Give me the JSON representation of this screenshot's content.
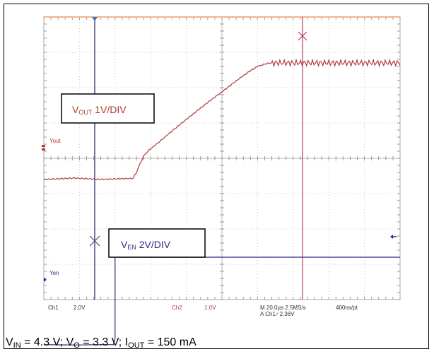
{
  "chart_data": {
    "type": "line",
    "title": "",
    "xlabel": "",
    "ylabel": "",
    "grid": true,
    "x_unit": "µs",
    "x_range": [
      -50,
      150
    ],
    "y_divisions": 8,
    "series": [
      {
        "name": "Yout",
        "label": "VOUT 1V/DIV",
        "color": "#b03a3a",
        "x": [
          -50,
          -33,
          -18,
          -8,
          0,
          2,
          4,
          6,
          8,
          10,
          14,
          20,
          26,
          34,
          42,
          50,
          58,
          62,
          66,
          70,
          75,
          80,
          90,
          100,
          110,
          120,
          130,
          140,
          150
        ],
        "y": [
          0,
          0.04,
          0,
          0.02,
          0.03,
          0.2,
          0.45,
          0.66,
          0.78,
          0.87,
          1.03,
          1.29,
          1.54,
          1.86,
          2.18,
          2.48,
          2.79,
          2.94,
          3.08,
          3.2,
          3.28,
          3.3,
          3.3,
          3.3,
          3.3,
          3.3,
          3.3,
          3.3,
          3.3
        ]
      },
      {
        "name": "Yen",
        "label": "VEN 2V/DIV",
        "color": "#2c2c8a",
        "x": [
          -50,
          -30,
          -20,
          -11,
          -10,
          -10,
          -9,
          0,
          50,
          100,
          150
        ],
        "y": [
          0.05,
          0.03,
          0.05,
          0.05,
          0.4,
          5.1,
          5.0,
          5.0,
          5.0,
          5.0,
          5.0
        ]
      }
    ],
    "annotations": [
      "VOUT 1V/DIV",
      "VEN 2V/DIV"
    ],
    "status_line_1": [
      "Ch1",
      "2.0V",
      "Ch2",
      "1.0V",
      "M 20.0µs 2.5MS/s",
      "400ns/pt"
    ],
    "status_line_2": "A Ch1 ⁄ 2.36V",
    "caption": {
      "vin_sub": "IN",
      "vin_text": " = 4.3 V; ",
      "vo_sub": "O",
      "vo_text": " = 3.3 V; ",
      "iout_sub": "OUT",
      "iout_text": " = 150 mA"
    }
  }
}
